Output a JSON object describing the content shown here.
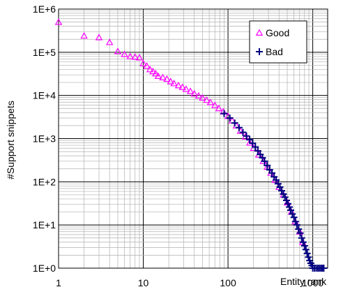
{
  "chart_data": {
    "type": "scatter",
    "xlabel": "Entity rank",
    "ylabel": "#Support snippets",
    "xscale": "log",
    "yscale": "log",
    "xlim": [
      1,
      1500
    ],
    "ylim": [
      1,
      1000000
    ],
    "grid": true,
    "legend_position": "top-right",
    "x_ticks": [
      {
        "value": 1,
        "label": "1"
      },
      {
        "value": 10,
        "label": "10"
      },
      {
        "value": 100,
        "label": "100"
      },
      {
        "value": 1000,
        "label": "1000"
      }
    ],
    "y_ticks": [
      {
        "value": 1,
        "label": "1E+0"
      },
      {
        "value": 10,
        "label": "1E+1"
      },
      {
        "value": 100,
        "label": "1E+2"
      },
      {
        "value": 1000,
        "label": "1E+3"
      },
      {
        "value": 10000,
        "label": "1E+4"
      },
      {
        "value": 100000,
        "label": "1E+5"
      },
      {
        "value": 1000000,
        "label": "1E+6"
      }
    ],
    "series": [
      {
        "name": "Good",
        "marker": "triangle",
        "color": "#ff00ff",
        "points": [
          [
            1,
            500000
          ],
          [
            2,
            240000
          ],
          [
            3,
            220000
          ],
          [
            4,
            170000
          ],
          [
            5,
            105000
          ],
          [
            6,
            90000
          ],
          [
            7,
            80000
          ],
          [
            8,
            78000
          ],
          [
            9,
            75000
          ],
          [
            10,
            55000
          ],
          [
            11,
            48000
          ],
          [
            12,
            40000
          ],
          [
            13,
            36000
          ],
          [
            14,
            32000
          ],
          [
            15,
            28000
          ],
          [
            17,
            26000
          ],
          [
            19,
            24000
          ],
          [
            21,
            21000
          ],
          [
            23,
            19000
          ],
          [
            26,
            17000
          ],
          [
            29,
            15500
          ],
          [
            32,
            14000
          ],
          [
            36,
            12500
          ],
          [
            40,
            11000
          ],
          [
            45,
            9800
          ],
          [
            50,
            8800
          ],
          [
            56,
            7800
          ],
          [
            62,
            6900
          ],
          [
            70,
            5900
          ],
          [
            78,
            5000
          ],
          [
            88,
            4200
          ],
          [
            100,
            3300
          ],
          [
            112,
            2600
          ],
          [
            125,
            2000
          ],
          [
            140,
            1500
          ],
          [
            160,
            1100
          ],
          [
            180,
            800
          ],
          [
            200,
            600
          ],
          [
            230,
            420
          ],
          [
            260,
            300
          ],
          [
            290,
            220
          ],
          [
            320,
            160
          ],
          [
            360,
            110
          ],
          [
            400,
            75
          ],
          [
            450,
            50
          ],
          [
            500,
            33
          ],
          [
            560,
            20
          ],
          [
            620,
            12
          ],
          [
            700,
            7
          ],
          [
            760,
            4
          ]
        ]
      },
      {
        "name": "Bad",
        "marker": "plus",
        "color": "#000080",
        "points": [
          [
            90,
            3800
          ],
          [
            105,
            3000
          ],
          [
            120,
            2300
          ],
          [
            135,
            1800
          ],
          [
            150,
            1400
          ],
          [
            165,
            1150
          ],
          [
            180,
            950
          ],
          [
            195,
            780
          ],
          [
            210,
            640
          ],
          [
            225,
            520
          ],
          [
            240,
            430
          ],
          [
            255,
            360
          ],
          [
            270,
            300
          ],
          [
            290,
            240
          ],
          [
            310,
            190
          ],
          [
            330,
            160
          ],
          [
            350,
            130
          ],
          [
            370,
            110
          ],
          [
            390,
            90
          ],
          [
            410,
            75
          ],
          [
            430,
            62
          ],
          [
            450,
            52
          ],
          [
            470,
            44
          ],
          [
            490,
            37
          ],
          [
            510,
            31
          ],
          [
            530,
            26
          ],
          [
            550,
            22
          ],
          [
            575,
            18
          ],
          [
            600,
            15
          ],
          [
            625,
            12
          ],
          [
            650,
            10
          ],
          [
            680,
            8
          ],
          [
            710,
            6.5
          ],
          [
            740,
            5
          ],
          [
            770,
            4
          ],
          [
            800,
            3.3
          ],
          [
            830,
            2.7
          ],
          [
            860,
            2.2
          ],
          [
            890,
            1.8
          ],
          [
            920,
            1.5
          ],
          [
            950,
            1.3
          ],
          [
            980,
            1.15
          ],
          [
            1000,
            1
          ],
          [
            1050,
            1
          ],
          [
            1100,
            1
          ],
          [
            1150,
            1
          ],
          [
            1200,
            1
          ],
          [
            1250,
            1
          ],
          [
            1300,
            1
          ],
          [
            1350,
            1
          ]
        ]
      }
    ]
  }
}
